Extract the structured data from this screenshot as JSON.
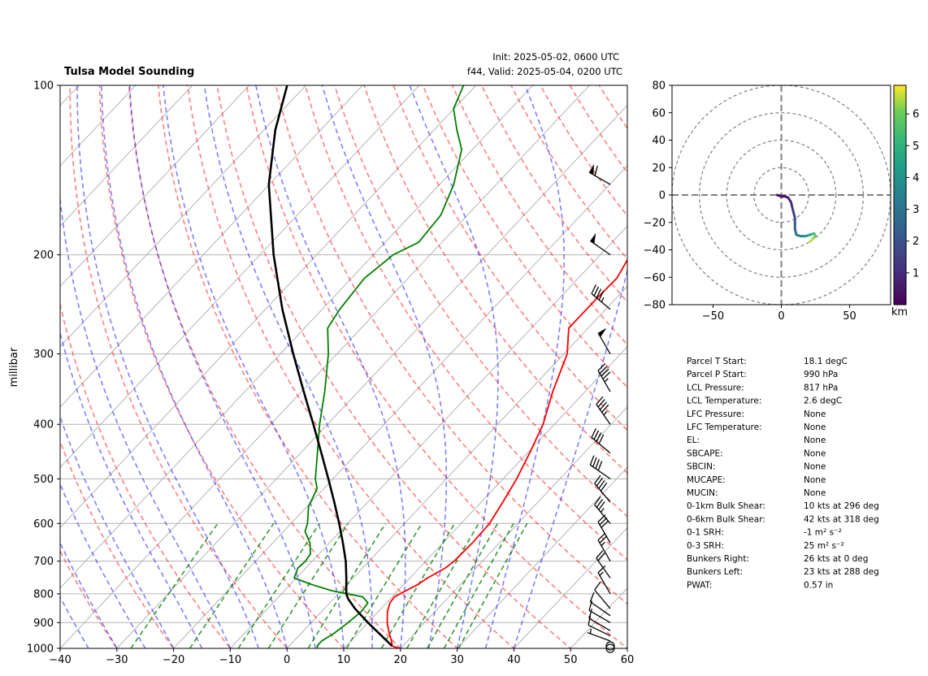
{
  "header": {
    "title": "Tulsa Model Sounding",
    "init": "Init: 2025-05-02, 0600 UTC",
    "valid": "f44, Valid: 2025-05-04, 0200 UTC"
  },
  "colors": {
    "temperature": "#ff0000",
    "dewpoint": "#008000",
    "parcel": "#000000",
    "dry_adiabat": "#ff0000",
    "moist_adiabat": "#0000ff",
    "mixing_ratio": "#008000",
    "isobar_grid": "#b3b3b3"
  },
  "chart_data": [
    {
      "type": "line",
      "subtype": "skew-t log-p",
      "ylabel": "millibar",
      "xlim": [
        -40,
        60
      ],
      "ylim": [
        1000,
        100
      ],
      "y_scale": "log",
      "grid": true,
      "x_ticks": [
        "−40",
        "−30",
        "−20",
        "−10",
        "0",
        "10",
        "20",
        "30",
        "40",
        "50",
        "60"
      ],
      "y_ticks": [
        "100",
        "200",
        "300",
        "400",
        "500",
        "600",
        "700",
        "800",
        "900",
        "1000"
      ],
      "series": [
        {
          "key": "temperature",
          "points": [
            [
              1000,
              19.8
            ],
            [
              990,
              18.1
            ],
            [
              970,
              17.2
            ],
            [
              940,
              15.5
            ],
            [
              900,
              13.4
            ],
            [
              860,
              11.6
            ],
            [
              830,
              10.6
            ],
            [
              810,
              10.4
            ],
            [
              790,
              11.4
            ],
            [
              770,
              12.5
            ],
            [
              750,
              13.1
            ],
            [
              720,
              14.6
            ],
            [
              700,
              15.0
            ],
            [
              650,
              15.2
            ],
            [
              600,
              15.0
            ],
            [
              550,
              13.8
            ],
            [
              500,
              12.4
            ],
            [
              450,
              10.4
            ],
            [
              400,
              8.0
            ],
            [
              350,
              4.3
            ],
            [
              300,
              0.6
            ],
            [
              270,
              -3.4
            ],
            [
              240,
              -3.4
            ],
            [
              220,
              -3.2
            ],
            [
              200,
              -4.7
            ],
            [
              180,
              -7.4
            ],
            [
              150,
              -9.2
            ],
            [
              120,
              -9.6
            ],
            [
              110,
              -10.4
            ],
            [
              100,
              -12.9
            ]
          ]
        },
        {
          "key": "dewpoint",
          "points": [
            [
              1000,
              5.4
            ],
            [
              990,
              4.9
            ],
            [
              970,
              4.9
            ],
            [
              940,
              5.8
            ],
            [
              900,
              6.5
            ],
            [
              860,
              7.0
            ],
            [
              830,
              6.7
            ],
            [
              810,
              4.8
            ],
            [
              790,
              -1.6
            ],
            [
              770,
              -6.3
            ],
            [
              750,
              -10.4
            ],
            [
              720,
              -11.4
            ],
            [
              700,
              -11.2
            ],
            [
              680,
              -11.5
            ],
            [
              650,
              -13.4
            ],
            [
              620,
              -16.2
            ],
            [
              600,
              -17.1
            ],
            [
              560,
              -19.7
            ],
            [
              520,
              -21.2
            ],
            [
              500,
              -23.1
            ],
            [
              450,
              -27.0
            ],
            [
              400,
              -31.4
            ],
            [
              350,
              -35.9
            ],
            [
              300,
              -41.5
            ],
            [
              270,
              -45.9
            ],
            [
              250,
              -46.9
            ],
            [
              220,
              -47.7
            ],
            [
              200,
              -46.5
            ],
            [
              190,
              -44.1
            ],
            [
              170,
              -44.7
            ],
            [
              150,
              -47.5
            ],
            [
              130,
              -51.9
            ],
            [
              120,
              -56.0
            ],
            [
              110,
              -60.1
            ],
            [
              100,
              -62.2
            ]
          ]
        },
        {
          "key": "parcel",
          "points": [
            [
              990,
              18.1
            ],
            [
              950,
              14.6
            ],
            [
              900,
              10.0
            ],
            [
              850,
              5.4
            ],
            [
              817,
              2.6
            ],
            [
              800,
              1.4
            ],
            [
              750,
              -1.2
            ],
            [
              700,
              -4.1
            ],
            [
              650,
              -7.6
            ],
            [
              600,
              -11.5
            ],
            [
              550,
              -15.9
            ],
            [
              500,
              -20.8
            ],
            [
              450,
              -26.3
            ],
            [
              400,
              -32.5
            ],
            [
              350,
              -39.6
            ],
            [
              300,
              -47.7
            ],
            [
              250,
              -57.0
            ],
            [
              200,
              -67.6
            ],
            [
              150,
              -80.1
            ],
            [
              120,
              -88.0
            ],
            [
              100,
              -93.3
            ]
          ]
        }
      ],
      "wind_barbs": [
        {
          "p": 1000,
          "speed_kt": 4,
          "dir": 300
        },
        {
          "p": 990,
          "speed_kt": 4,
          "dir": 300
        },
        {
          "p": 970,
          "speed_kt": 6,
          "dir": 290
        },
        {
          "p": 950,
          "speed_kt": 10,
          "dir": 296
        },
        {
          "p": 930,
          "speed_kt": 10,
          "dir": 300
        },
        {
          "p": 900,
          "speed_kt": 12,
          "dir": 300
        },
        {
          "p": 875,
          "speed_kt": 12,
          "dir": 305
        },
        {
          "p": 850,
          "speed_kt": 12,
          "dir": 320
        },
        {
          "p": 800,
          "speed_kt": 15,
          "dir": 330
        },
        {
          "p": 750,
          "speed_kt": 20,
          "dir": 325
        },
        {
          "p": 700,
          "speed_kt": 25,
          "dir": 330
        },
        {
          "p": 650,
          "speed_kt": 30,
          "dir": 330
        },
        {
          "p": 600,
          "speed_kt": 35,
          "dir": 320
        },
        {
          "p": 550,
          "speed_kt": 40,
          "dir": 320
        },
        {
          "p": 500,
          "speed_kt": 40,
          "dir": 305
        },
        {
          "p": 450,
          "speed_kt": 40,
          "dir": 310
        },
        {
          "p": 400,
          "speed_kt": 45,
          "dir": 325
        },
        {
          "p": 350,
          "speed_kt": 45,
          "dir": 330
        },
        {
          "p": 300,
          "speed_kt": 50,
          "dir": 330
        },
        {
          "p": 250,
          "speed_kt": 45,
          "dir": 310
        },
        {
          "p": 200,
          "speed_kt": 50,
          "dir": 305
        },
        {
          "p": 150,
          "speed_kt": 60,
          "dir": 300
        }
      ]
    },
    {
      "type": "line",
      "subtype": "hodograph",
      "xlim": [
        -80,
        80
      ],
      "ylim": [
        -80,
        80
      ],
      "x_ticks": [
        "−50",
        "0",
        "50"
      ],
      "y_ticks": [
        "80",
        "60",
        "40",
        "20",
        "0",
        "−20",
        "−40",
        "−60",
        "−80"
      ],
      "rings": [
        20,
        40,
        60,
        80
      ],
      "colorbar_label": "km",
      "colorbar_ticks": [
        "1",
        "2",
        "3",
        "4",
        "5",
        "6"
      ],
      "colorbar_range": [
        0,
        6.9
      ],
      "points": [
        [
          -3,
          0,
          0.0
        ],
        [
          0,
          -1,
          0.2
        ],
        [
          3,
          -1,
          0.4
        ],
        [
          5,
          -2,
          0.6
        ],
        [
          7,
          -5,
          0.9
        ],
        [
          8,
          -9,
          1.2
        ],
        [
          9,
          -13,
          1.5
        ],
        [
          10,
          -17,
          1.8
        ],
        [
          10,
          -21,
          2.2
        ],
        [
          10,
          -25,
          2.6
        ],
        [
          11,
          -29,
          3.0
        ],
        [
          14,
          -30,
          3.5
        ],
        [
          18,
          -30,
          4.0
        ],
        [
          21,
          -29,
          4.6
        ],
        [
          24,
          -28,
          5.2
        ],
        [
          25,
          -30,
          5.8
        ],
        [
          23,
          -32,
          6.3
        ],
        [
          21,
          -34,
          6.8
        ]
      ]
    }
  ],
  "stats": [
    {
      "label": "Parcel T Start:",
      "value": "18.1 degC"
    },
    {
      "label": "Parcel P Start:",
      "value": "990 hPa"
    },
    {
      "label": "LCL Pressure:",
      "value": "817 hPa"
    },
    {
      "label": "LCL Temperature:",
      "value": "2.6 degC"
    },
    {
      "label": "LFC Pressure:",
      "value": "None"
    },
    {
      "label": "LFC Temperature:",
      "value": "None"
    },
    {
      "label": "EL:",
      "value": "None"
    },
    {
      "label": "SBCAPE:",
      "value": "None"
    },
    {
      "label": "SBCIN:",
      "value": "None"
    },
    {
      "label": "MUCAPE:",
      "value": "None"
    },
    {
      "label": "MUCIN:",
      "value": "None"
    },
    {
      "label": "0-1km Bulk Shear:",
      "value": "10 kts at 296 deg"
    },
    {
      "label": "0-6km Bulk Shear:",
      "value": "42 kts at 318 deg"
    },
    {
      "label": "0-1 SRH:",
      "value": "-1 m² s⁻²"
    },
    {
      "label": "0-3 SRH:",
      "value": "25 m² s⁻²"
    },
    {
      "label": "Bunkers Right:",
      "value": "26 kts at 0 deg"
    },
    {
      "label": "Bunkers Left:",
      "value": "23 kts at 288 deg"
    },
    {
      "label": "PWAT:",
      "value": "0.57 in"
    }
  ]
}
